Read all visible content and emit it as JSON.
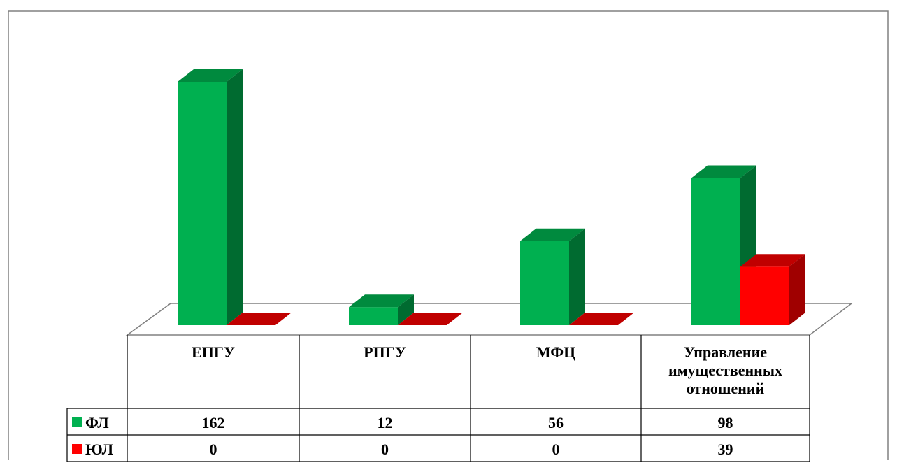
{
  "chart_data": {
    "type": "bar",
    "title": "",
    "categories": [
      [
        "ЕПГУ"
      ],
      [
        "РПГУ"
      ],
      [
        "МФЦ"
      ],
      [
        "Управление",
        "имущественных",
        "отношений"
      ]
    ],
    "series": [
      {
        "name": "ФЛ",
        "values": [
          162,
          12,
          56,
          98
        ],
        "color": "#00b050"
      },
      {
        "name": "ЮЛ",
        "values": [
          0,
          0,
          0,
          39
        ],
        "color": "#ff0000"
      }
    ],
    "ylim": [
      0,
      162
    ],
    "grid": false,
    "legend": "data-table-left",
    "data_table": true
  },
  "colors": {
    "green_front": "#00b050",
    "green_top": "#008a3e",
    "green_side": "#006b30",
    "red_front": "#ff0000",
    "red_top": "#c00000",
    "red_side": "#a00000",
    "border": "#808080",
    "table_line": "#000000"
  }
}
